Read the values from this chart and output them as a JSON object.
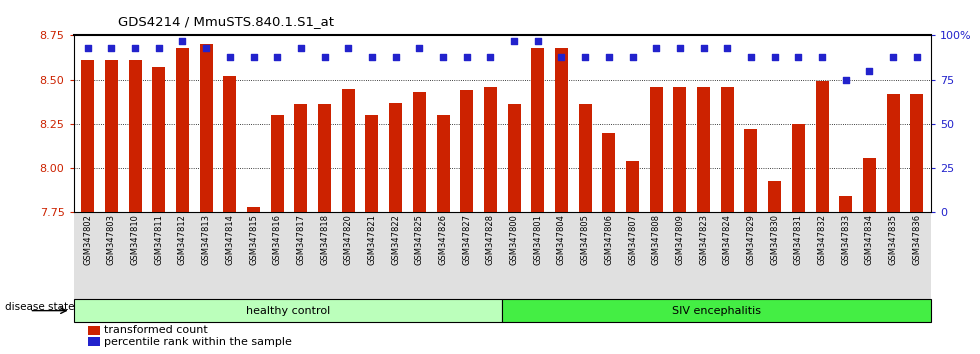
{
  "title": "GDS4214 / MmuSTS.840.1.S1_at",
  "samples": [
    "GSM347802",
    "GSM347803",
    "GSM347810",
    "GSM347811",
    "GSM347812",
    "GSM347813",
    "GSM347814",
    "GSM347815",
    "GSM347816",
    "GSM347817",
    "GSM347818",
    "GSM347820",
    "GSM347821",
    "GSM347822",
    "GSM347825",
    "GSM347826",
    "GSM347827",
    "GSM347828",
    "GSM347800",
    "GSM347801",
    "GSM347804",
    "GSM347805",
    "GSM347806",
    "GSM347807",
    "GSM347808",
    "GSM347809",
    "GSM347823",
    "GSM347824",
    "GSM347829",
    "GSM347830",
    "GSM347831",
    "GSM347832",
    "GSM347833",
    "GSM347834",
    "GSM347835",
    "GSM347836"
  ],
  "bar_values": [
    8.61,
    8.61,
    8.61,
    8.57,
    8.68,
    8.7,
    8.52,
    7.78,
    8.3,
    8.36,
    8.36,
    8.45,
    8.3,
    8.37,
    8.43,
    8.3,
    8.44,
    8.46,
    8.36,
    8.68,
    8.68,
    8.36,
    8.2,
    8.04,
    8.46,
    8.46,
    8.46,
    8.46,
    8.22,
    7.93,
    8.25,
    8.49,
    7.84,
    8.06,
    8.42,
    8.42
  ],
  "percentile_values": [
    93,
    93,
    93,
    93,
    97,
    93,
    88,
    88,
    88,
    93,
    88,
    93,
    88,
    88,
    93,
    88,
    88,
    88,
    97,
    97,
    88,
    88,
    88,
    88,
    93,
    93,
    93,
    93,
    88,
    88,
    88,
    88,
    75,
    80,
    88,
    88
  ],
  "ylim_left": [
    7.75,
    8.75
  ],
  "ylim_right": [
    0,
    100
  ],
  "bar_color": "#cc2200",
  "dot_color": "#2222cc",
  "healthy_count": 18,
  "group_labels": [
    "healthy control",
    "SIV encephalitis"
  ],
  "healthy_color": "#bbffbb",
  "siv_color": "#44ee44",
  "yticks_left": [
    7.75,
    8.0,
    8.25,
    8.5,
    8.75
  ],
  "yticks_right": [
    0,
    25,
    50,
    75,
    100
  ],
  "ytick_right_labels": [
    "0",
    "25",
    "50",
    "75",
    "100%"
  ]
}
